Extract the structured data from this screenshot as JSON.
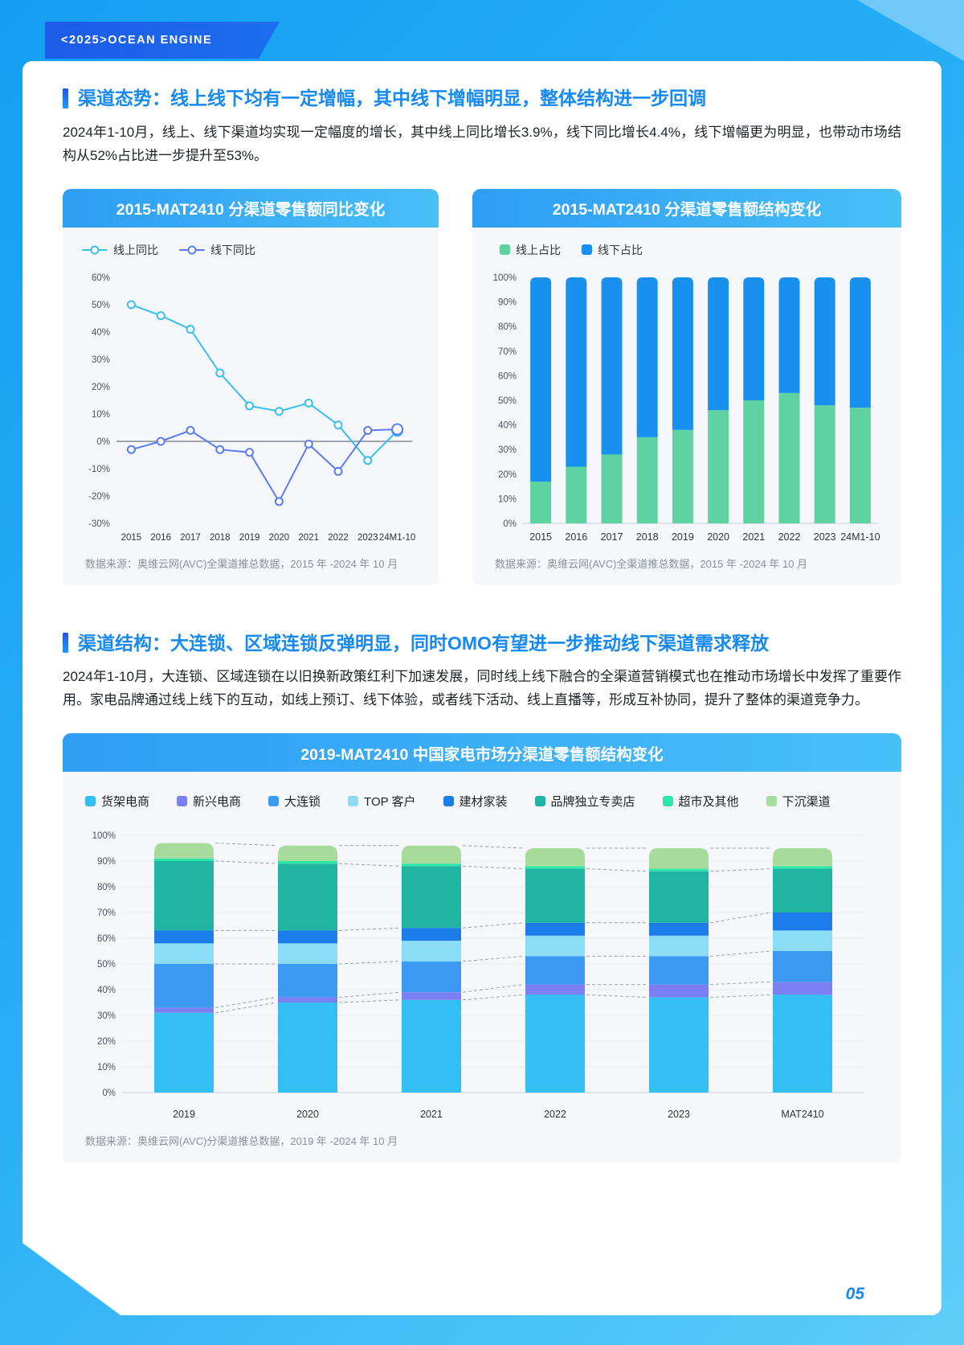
{
  "page": {
    "brand": "<2025>OCEAN ENGINE",
    "page_number": "05"
  },
  "colors": {
    "frame_blue": "#27AEF5",
    "banner_blue": "#1C63EA",
    "section_title_blue": "#1689F2",
    "card_header_blue": "#2E9DF4"
  },
  "sections": [
    {
      "title": "渠道态势：线上线下均有一定增幅，其中线下增幅明显，整体结构进一步回调",
      "body": "2024年1-10月，线上、线下渠道均实现一定幅度的增长，其中线上同比增长3.9%，线下同比增长4.4%，线下增幅更为明显，也带动市场结构从52%占比进一步提升至53%。"
    },
    {
      "title": "渠道结构：大连锁、区域连锁反弹明显，同时OMO有望进一步推动线下渠道需求释放",
      "body": "2024年1-10月，大连锁、区域连锁在以旧换新政策红利下加速发展，同时线上线下融合的全渠道营销模式也在推动市场增长中发挥了重要作用。家电品牌通过线上线下的互动，如线上预订、线下体验，或者线下活动、线上直播等，形成互补协同，提升了整体的渠道竞争力。"
    }
  ],
  "chart_data": [
    {
      "type": "line",
      "title": "2015-MAT2410 分渠道零售额同比变化",
      "categories": [
        "2015",
        "2016",
        "2017",
        "2018",
        "2019",
        "2020",
        "2021",
        "2022",
        "2023",
        "24M1-10"
      ],
      "series": [
        {
          "name": "线上同比",
          "color": "#38BFF2",
          "values": [
            50,
            46,
            41,
            25,
            13,
            11,
            14,
            6,
            -7,
            3.9
          ]
        },
        {
          "name": "线下同比",
          "color": "#5B7CF7",
          "values": [
            -3,
            0,
            4,
            -3,
            -4,
            -22,
            -1,
            -11,
            4,
            4.4
          ]
        }
      ],
      "ylim": [
        -30,
        60
      ],
      "ytick_step": 10,
      "grid": false,
      "legend_position": "top-left",
      "source": "数据来源：奥维云网(AVC)全渠道推总数据，2015 年 -2024 年 10 月"
    },
    {
      "type": "bar",
      "stacked": true,
      "title": "2015-MAT2410 分渠道零售额结构变化",
      "categories": [
        "2015",
        "2016",
        "2017",
        "2018",
        "2019",
        "2020",
        "2021",
        "2022",
        "2023",
        "24M1-10"
      ],
      "series": [
        {
          "name": "线上占比",
          "color": "#5FD2A2",
          "values": [
            17,
            23,
            28,
            35,
            38,
            46,
            50,
            53,
            48,
            47
          ]
        },
        {
          "name": "线下占比",
          "color": "#1890F0",
          "values": [
            83,
            77,
            72,
            65,
            62,
            54,
            50,
            47,
            52,
            53
          ]
        }
      ],
      "ylim": [
        0,
        100
      ],
      "ytick_step": 10,
      "legend_position": "top-left",
      "source": "数据来源：奥维云网(AVC)全渠道推总数据，2015 年 -2024 年 10 月"
    },
    {
      "type": "bar",
      "stacked": true,
      "title": "2019-MAT2410 中国家电市场分渠道零售额结构变化",
      "categories": [
        "2019",
        "2020",
        "2021",
        "2022",
        "2023",
        "MAT2410"
      ],
      "series": [
        {
          "name": "货架电商",
          "color": "#33BFF4",
          "values": [
            31,
            35,
            36,
            38,
            37,
            38
          ]
        },
        {
          "name": "新兴电商",
          "color": "#7A80F2",
          "values": [
            2,
            2,
            3,
            4,
            5,
            5
          ]
        },
        {
          "name": "大连锁",
          "color": "#3D9AF2",
          "values": [
            17,
            13,
            12,
            11,
            11,
            12
          ]
        },
        {
          "name": "TOP 客户",
          "color": "#8ADCF7",
          "values": [
            8,
            8,
            8,
            8,
            8,
            8
          ]
        },
        {
          "name": "建材家装",
          "color": "#1B7CEA",
          "values": [
            5,
            5,
            5,
            5,
            5,
            7
          ]
        },
        {
          "name": "品牌独立专卖店",
          "color": "#21B4A2",
          "values": [
            27,
            26,
            24,
            21,
            20,
            17
          ]
        },
        {
          "name": "超市及其他",
          "color": "#2BE8A8",
          "values": [
            1,
            1,
            1,
            1,
            1,
            1
          ]
        },
        {
          "name": "下沉渠道",
          "color": "#A8DC9C",
          "values": [
            6,
            6,
            7,
            7,
            8,
            7
          ]
        }
      ],
      "ylim": [
        0,
        100
      ],
      "ytick_step": 10,
      "grid": true,
      "dashed_connectors": true,
      "source": "数据来源：奥维云网(AVC)分渠道推总数据，2019 年 -2024 年 10 月"
    }
  ]
}
